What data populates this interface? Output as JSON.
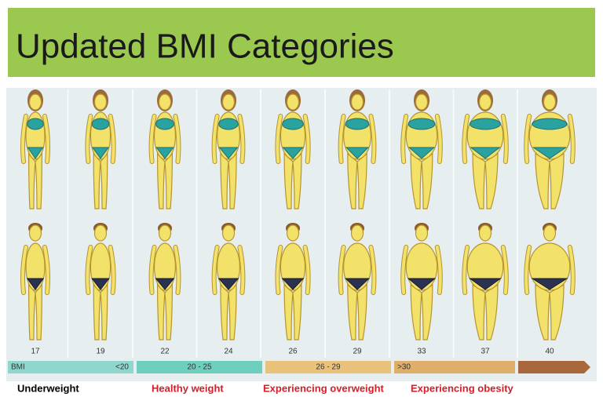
{
  "header": {
    "title": "Updated BMI Categories"
  },
  "figures": {
    "bmi_values": [
      "17",
      "19",
      "22",
      "24",
      "26",
      "29",
      "33",
      "37",
      "40"
    ]
  },
  "scale_bar": {
    "label": "BMI",
    "ranges": [
      "<20",
      "20 - 25",
      "26 - 29",
      ">30"
    ]
  },
  "categories": [
    "Underweight",
    "Healthy weight",
    "Experiencing overweight",
    "Experiencing obesity"
  ]
}
